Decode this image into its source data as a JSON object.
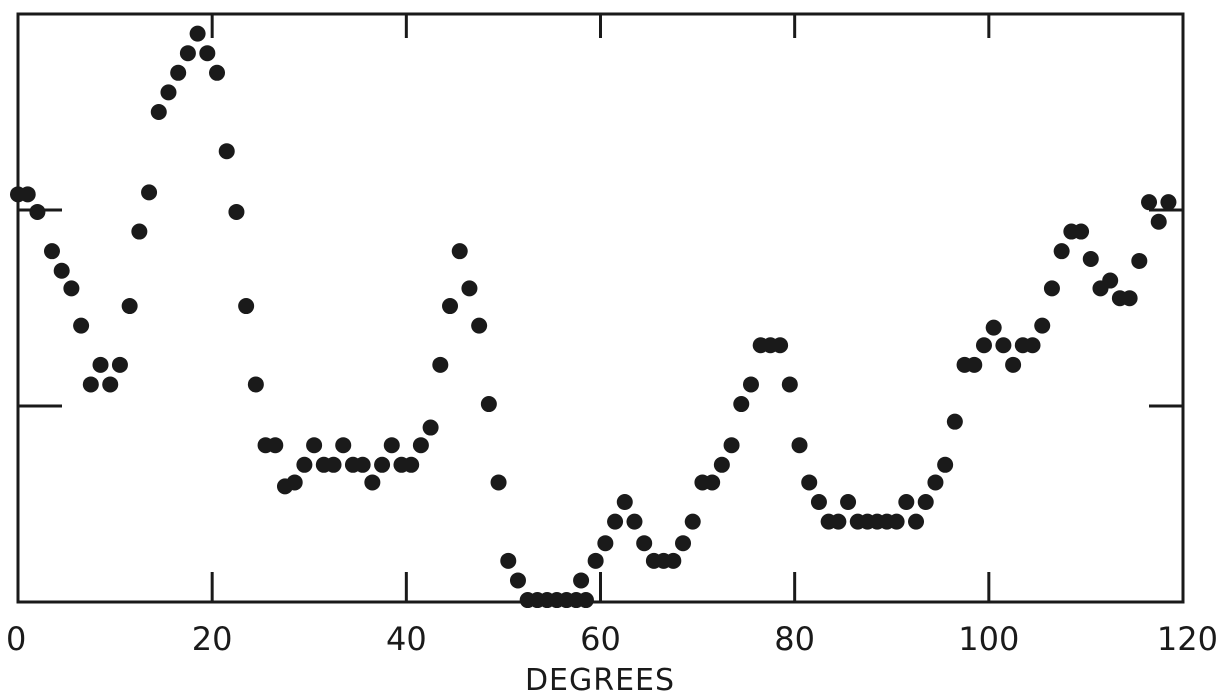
{
  "chart_data": {
    "type": "scatter",
    "title": "",
    "xlabel": "DEGREES",
    "ylabel": "",
    "xlim": [
      0,
      120
    ],
    "ylim": [
      0,
      3
    ],
    "x_ticks": [
      0,
      20,
      40,
      60,
      80,
      100,
      120
    ],
    "x_tick_labels": [
      "0",
      "20",
      "40",
      "60",
      "80",
      "100",
      "120"
    ],
    "y_ticks": [
      1,
      2
    ],
    "grid": false,
    "legend": "none",
    "marker_color": "#1a1a1a",
    "series": [
      {
        "points": [
          [
            0,
            2.08
          ],
          [
            1,
            2.08
          ],
          [
            2,
            1.99
          ],
          [
            3.5,
            1.79
          ],
          [
            4.5,
            1.69
          ],
          [
            5.5,
            1.6
          ],
          [
            6.5,
            1.41
          ],
          [
            7.5,
            1.11
          ],
          [
            8.5,
            1.21
          ],
          [
            9.5,
            1.11
          ],
          [
            10.5,
            1.21
          ],
          [
            11.5,
            1.51
          ],
          [
            12.5,
            1.89
          ],
          [
            13.5,
            2.09
          ],
          [
            14.5,
            2.5
          ],
          [
            15.5,
            2.6
          ],
          [
            16.5,
            2.7
          ],
          [
            17.5,
            2.8
          ],
          [
            18.5,
            2.9
          ],
          [
            19.5,
            2.8
          ],
          [
            20.5,
            2.7
          ],
          [
            21.5,
            2.3
          ],
          [
            22.5,
            1.99
          ],
          [
            23.5,
            1.51
          ],
          [
            24.5,
            1.11
          ],
          [
            25.5,
            0.8
          ],
          [
            26.5,
            0.8
          ],
          [
            27.5,
            0.59
          ],
          [
            28.5,
            0.61
          ],
          [
            29.5,
            0.7
          ],
          [
            30.5,
            0.8
          ],
          [
            31.5,
            0.7
          ],
          [
            32.5,
            0.7
          ],
          [
            33.5,
            0.8
          ],
          [
            34.5,
            0.7
          ],
          [
            35.5,
            0.7
          ],
          [
            36.5,
            0.61
          ],
          [
            37.5,
            0.7
          ],
          [
            38.5,
            0.8
          ],
          [
            39.5,
            0.7
          ],
          [
            40.5,
            0.7
          ],
          [
            41.5,
            0.8
          ],
          [
            42.5,
            0.89
          ],
          [
            43.5,
            1.21
          ],
          [
            44.5,
            1.51
          ],
          [
            45.5,
            1.79
          ],
          [
            46.5,
            1.6
          ],
          [
            47.5,
            1.41
          ],
          [
            48.5,
            1.01
          ],
          [
            49.5,
            0.61
          ],
          [
            50.5,
            0.21
          ],
          [
            51.5,
            0.11
          ],
          [
            52.5,
            0.01
          ],
          [
            53.5,
            0.01
          ],
          [
            54.5,
            0.01
          ],
          [
            55.5,
            0.01
          ],
          [
            56.5,
            0.01
          ],
          [
            57.5,
            0.01
          ],
          [
            58,
            0.11
          ],
          [
            58.5,
            0.01
          ],
          [
            59.5,
            0.21
          ],
          [
            60.5,
            0.3
          ],
          [
            61.5,
            0.41
          ],
          [
            62.5,
            0.51
          ],
          [
            63.5,
            0.41
          ],
          [
            64.5,
            0.3
          ],
          [
            65.5,
            0.21
          ],
          [
            66.5,
            0.21
          ],
          [
            67.5,
            0.21
          ],
          [
            68.5,
            0.3
          ],
          [
            69.5,
            0.41
          ],
          [
            70.5,
            0.61
          ],
          [
            71.5,
            0.61
          ],
          [
            72.5,
            0.7
          ],
          [
            73.5,
            0.8
          ],
          [
            74.5,
            1.01
          ],
          [
            75.5,
            1.11
          ],
          [
            76.5,
            1.31
          ],
          [
            77.5,
            1.31
          ],
          [
            78.5,
            1.31
          ],
          [
            79.5,
            1.11
          ],
          [
            80.5,
            0.8
          ],
          [
            81.5,
            0.61
          ],
          [
            82.5,
            0.51
          ],
          [
            83.5,
            0.41
          ],
          [
            84.5,
            0.41
          ],
          [
            85.5,
            0.51
          ],
          [
            86.5,
            0.41
          ],
          [
            87.5,
            0.41
          ],
          [
            88.5,
            0.41
          ],
          [
            89.5,
            0.41
          ],
          [
            90.5,
            0.41
          ],
          [
            91.5,
            0.51
          ],
          [
            92.5,
            0.41
          ],
          [
            93.5,
            0.51
          ],
          [
            94.5,
            0.61
          ],
          [
            95.5,
            0.7
          ],
          [
            96.5,
            0.92
          ],
          [
            97.5,
            1.21
          ],
          [
            98.5,
            1.21
          ],
          [
            99.5,
            1.31
          ],
          [
            100.5,
            1.4
          ],
          [
            101.5,
            1.31
          ],
          [
            102.5,
            1.21
          ],
          [
            103.5,
            1.31
          ],
          [
            104.5,
            1.31
          ],
          [
            105.5,
            1.41
          ],
          [
            106.5,
            1.6
          ],
          [
            107.5,
            1.79
          ],
          [
            108.5,
            1.89
          ],
          [
            109.5,
            1.89
          ],
          [
            110.5,
            1.75
          ],
          [
            111.5,
            1.6
          ],
          [
            112.5,
            1.64
          ],
          [
            113.5,
            1.55
          ],
          [
            114.5,
            1.55
          ],
          [
            115.5,
            1.74
          ],
          [
            116.5,
            2.04
          ],
          [
            117.5,
            1.94
          ],
          [
            118.5,
            2.04
          ]
        ]
      }
    ]
  }
}
